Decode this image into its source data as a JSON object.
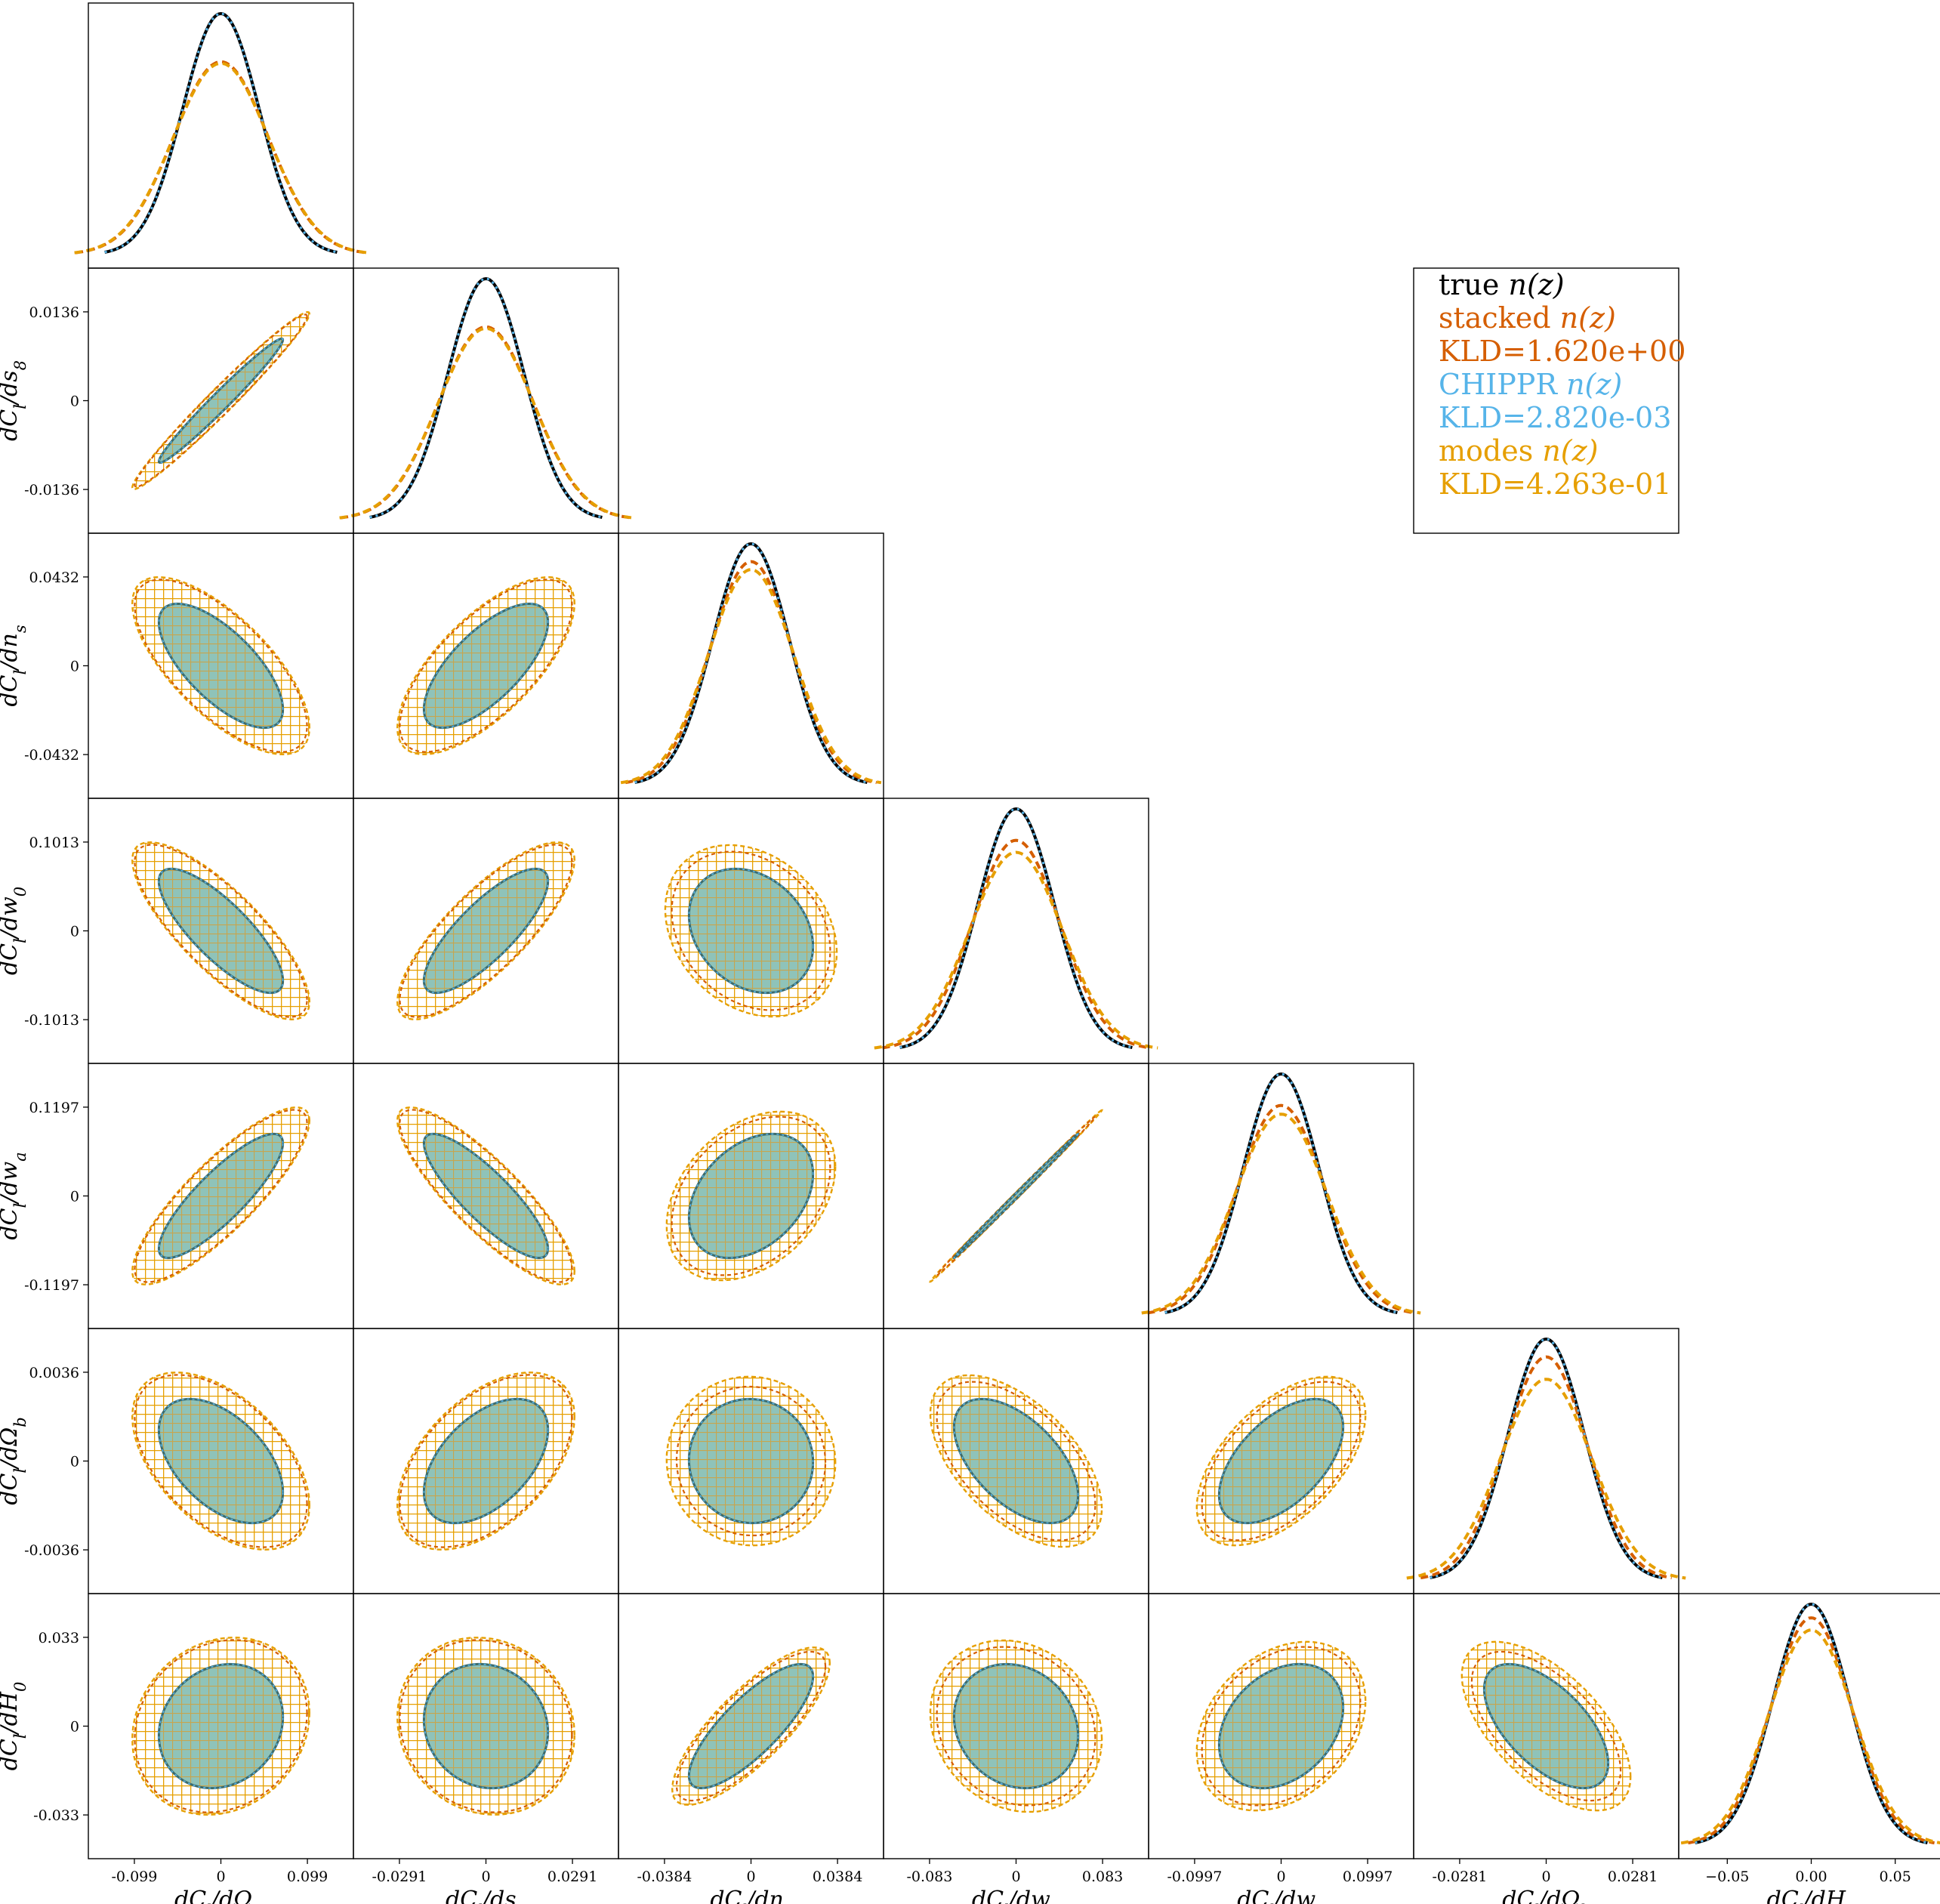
{
  "chart_data": {
    "type": "corner",
    "parameters": [
      {
        "label": "dC_l/dΩ_m",
        "ticks": [
          "-0.099",
          "0",
          "0.099"
        ]
      },
      {
        "label": "dC_l/ds_8",
        "ticks": [
          "-0.0291",
          "0",
          "0.0291"
        ]
      },
      {
        "label": "dC_l/dn_s",
        "ticks": [
          "-0.0384",
          "0",
          "0.0384"
        ]
      },
      {
        "label": "dC_l/dw_0",
        "ticks": [
          "-0.083",
          "0",
          "0.083"
        ]
      },
      {
        "label": "dC_l/dw_a",
        "ticks": [
          "-0.0997",
          "0",
          "0.0997"
        ]
      },
      {
        "label": "dC_l/dΩ_b",
        "ticks": [
          "-0.0281",
          "0",
          "0.0281"
        ]
      },
      {
        "label": "dC_l/dH_0",
        "ticks": [
          "−0.05",
          "0.00",
          "0.05"
        ]
      }
    ],
    "y_axis_ticks": [
      null,
      [
        "0.0136",
        "0",
        "-0.0136"
      ],
      [
        "0.0432",
        "0",
        "-0.0432"
      ],
      [
        "0.1013",
        "0",
        "-0.1013"
      ],
      [
        "0.1197",
        "0",
        "-0.1197"
      ],
      [
        "0.0036",
        "0",
        "-0.0036"
      ],
      [
        "0.033",
        "0",
        "-0.033"
      ]
    ],
    "correlations": [
      [
        1,
        0.98,
        -0.7,
        -0.8,
        0.85,
        -0.5,
        0.15
      ],
      [
        0.98,
        1,
        0.7,
        0.8,
        -0.85,
        0.5,
        -0.1
      ],
      [
        -0.7,
        0.7,
        1,
        -0.25,
        0.35,
        -0.02,
        0.8
      ],
      [
        -0.8,
        0.8,
        -0.25,
        1,
        0.999,
        -0.55,
        -0.15
      ],
      [
        0.85,
        -0.85,
        0.35,
        0.999,
        1,
        0.55,
        0.3
      ],
      [
        -0.5,
        0.5,
        -0.02,
        -0.55,
        0.55,
        1,
        -0.6
      ],
      [
        0.15,
        -0.1,
        0.8,
        -0.15,
        0.3,
        -0.6,
        1
      ]
    ],
    "series": [
      {
        "name": "true n(z)",
        "color": "#000000",
        "kld": "",
        "widths": [
          1,
          1,
          1,
          1,
          1,
          1,
          1
        ]
      },
      {
        "name": "stacked n(z)",
        "color": "#d55e00",
        "kld": "KLD=1.620e+00",
        "widths": [
          1.25,
          1.25,
          1.08,
          1.15,
          1.15,
          1.08,
          1.06
        ]
      },
      {
        "name": "CHIPPR n(z)",
        "color": "#56b4e9",
        "kld": "KLD=2.820e-03",
        "widths": [
          1.0,
          1.0,
          1.0,
          1.0,
          1.0,
          1.0,
          1.0
        ]
      },
      {
        "name": "modes n(z)",
        "color": "#e69f00",
        "kld": "KLD=4.263e-01",
        "widths": [
          1.26,
          1.26,
          1.12,
          1.22,
          1.2,
          1.2,
          1.12
        ]
      }
    ],
    "legend": {
      "placement": "upper-right",
      "entries": [
        {
          "prefix": "true ",
          "math": "n(z)",
          "color": "#000000"
        },
        {
          "prefix": "stacked ",
          "math": "n(z)",
          "color": "#d55e00"
        },
        {
          "prefix": "KLD=1.620e+00",
          "math": "",
          "color": "#d55e00"
        },
        {
          "prefix": "CHIPPR ",
          "math": "n(z)",
          "color": "#56b4e9"
        },
        {
          "prefix": "KLD=2.820e-03",
          "math": "",
          "color": "#56b4e9"
        },
        {
          "prefix": "modes ",
          "math": "n(z)",
          "color": "#e69f00"
        },
        {
          "prefix": "KLD=4.263e-01",
          "math": "",
          "color": "#e69f00"
        }
      ]
    },
    "fill_color": "#8fc3b9",
    "hatch_colors": [
      "#d55e00",
      "#e69f00"
    ]
  }
}
